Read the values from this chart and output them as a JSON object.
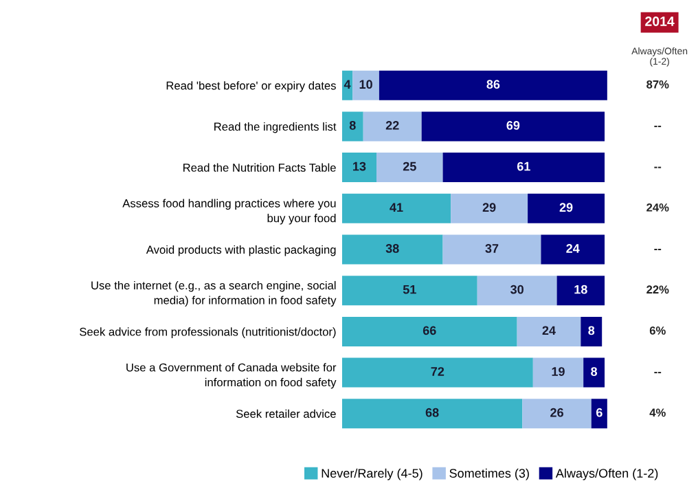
{
  "chart_data": {
    "type": "bar",
    "orientation": "horizontal",
    "stacked": true,
    "data_labels": true,
    "legend": "bottom",
    "grid": false,
    "categories": [
      "Read 'best before' or expiry dates",
      "Read the ingredients list",
      "Read the Nutrition Facts Table",
      "Assess food handling practices where you\nbuy your food",
      "Avoid products with plastic packaging",
      "Use the internet (e.g., as a search engine, social\nmedia) for information in food safety",
      "Seek advice from professionals (nutritionist/doctor)",
      "Use a Government of Canada website for\ninformation on food safety",
      "Seek retailer advice"
    ],
    "series": [
      {
        "name": "Never/Rarely (4-5)",
        "color": "#3bb5c8",
        "values": [
          4,
          8,
          13,
          41,
          38,
          51,
          66,
          72,
          68
        ]
      },
      {
        "name": "Sometimes (3)",
        "color": "#a8c3ea",
        "values": [
          10,
          22,
          25,
          29,
          37,
          30,
          24,
          19,
          26
        ]
      },
      {
        "name": "Always/Often (1-2)",
        "color": "#020385",
        "values": [
          86,
          69,
          61,
          29,
          24,
          18,
          8,
          8,
          6
        ]
      }
    ],
    "annotations": [
      "2014",
      "Always/Often\n(1-2)",
      "87%",
      "--",
      "--",
      "24%",
      "--",
      "22%",
      "6%",
      "--",
      "4%"
    ]
  }
}
